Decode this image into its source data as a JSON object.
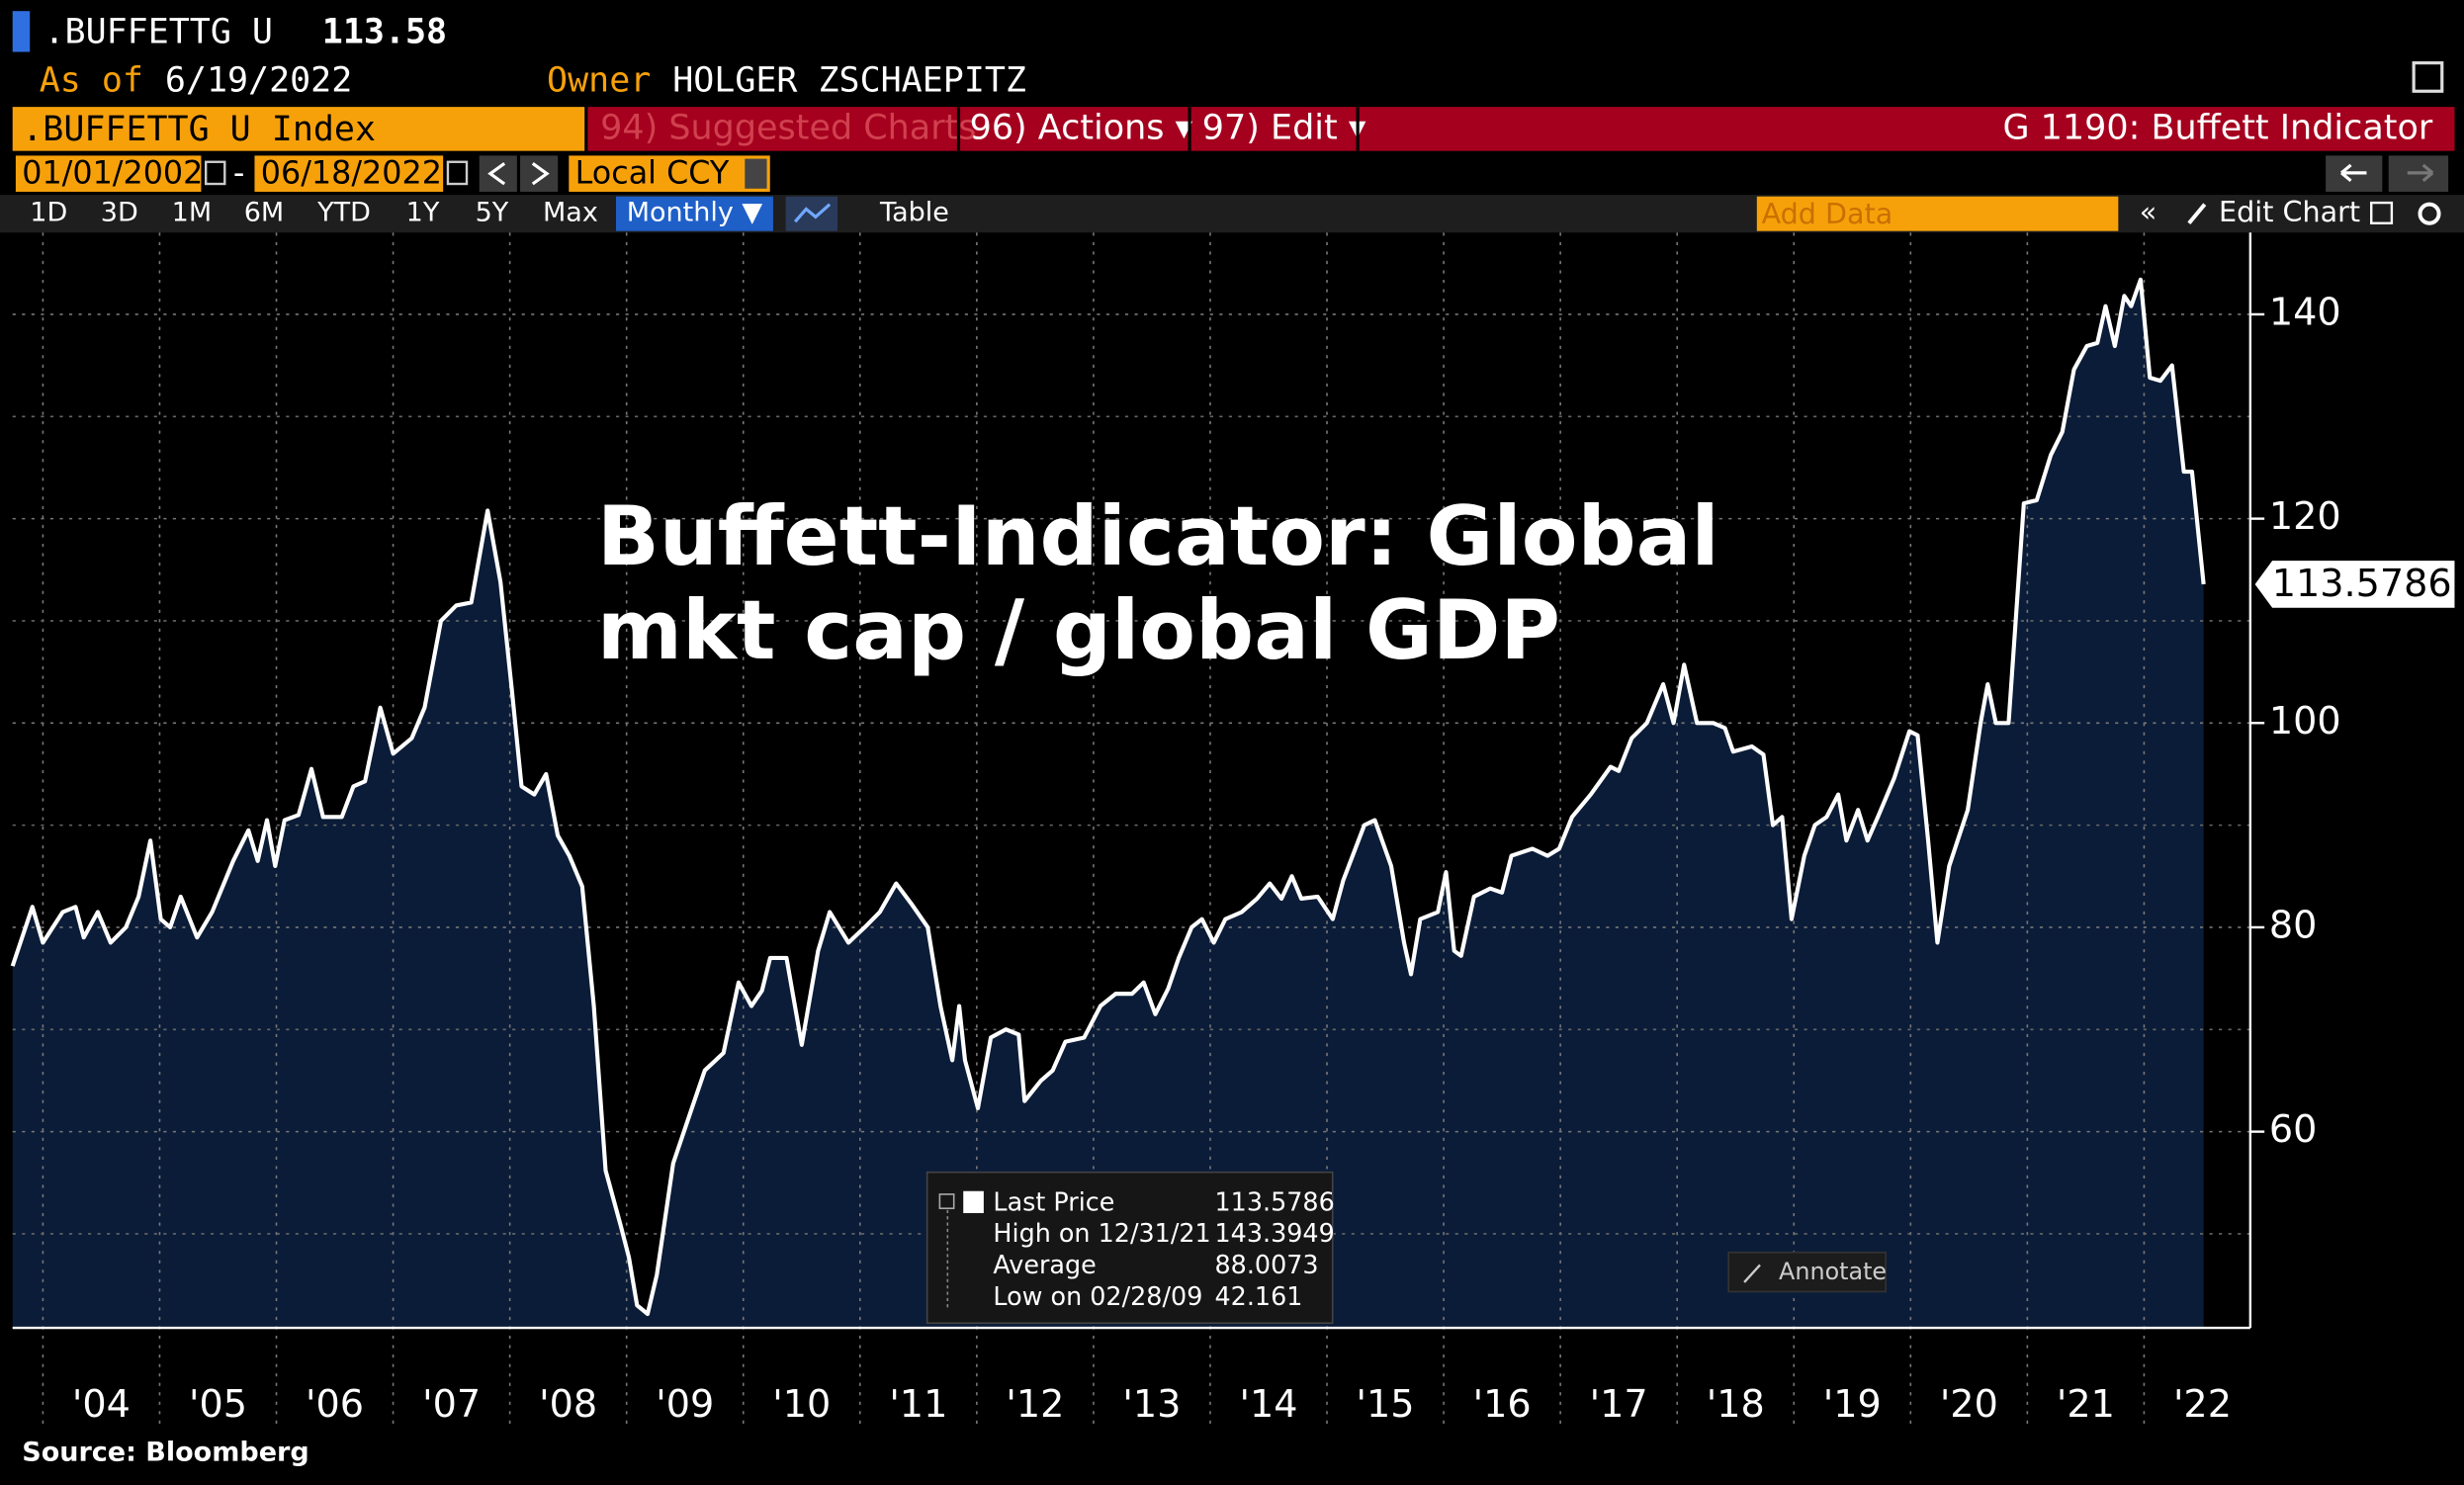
{
  "terminal": {
    "ticker": ".BUFFETTG U",
    "price": "113.58",
    "as_of_label": "As of",
    "as_of_date": "6/19/2022",
    "owner_label": "Owner",
    "owner": "HOLGER ZSCHAEPITZ",
    "security": ".BUFFETTG U Index",
    "menu": [
      "94) Suggested Charts",
      "96) Actions ▾",
      "97) Edit ▾"
    ],
    "function": "G 1190: Buffett Indicator",
    "start_date": "01/01/2002",
    "date_separator": "-",
    "end_date": "06/18/2022",
    "currency": "Local CCY",
    "buttons": [
      "1D",
      "3D",
      "1M",
      "6M",
      "YTD",
      "1Y",
      "5Y",
      "Max",
      "Monthly ▼",
      "Table"
    ],
    "add_data": "Add Data",
    "edit_chart": "Edit Chart",
    "annotate": "Annotate"
  },
  "chart_data": {
    "type": "area",
    "annotation": [
      "Buffett-Indicator: Global",
      "mkt cap / global GDP"
    ],
    "source": "Source: Bloomberg",
    "series_name": "Last Price",
    "line_color": "#ffffff",
    "fill_color": "#0b1c38",
    "xlim": [
      2003.74,
      2022.91
    ],
    "ylim": [
      40.8,
      148
    ],
    "xticks": [
      {
        "value": 2004,
        "label": "'04"
      },
      {
        "value": 2005,
        "label": "'05"
      },
      {
        "value": 2006,
        "label": "'06"
      },
      {
        "value": 2007,
        "label": "'07"
      },
      {
        "value": 2008,
        "label": "'08"
      },
      {
        "value": 2009,
        "label": "'09"
      },
      {
        "value": 2010,
        "label": "'10"
      },
      {
        "value": 2011,
        "label": "'11"
      },
      {
        "value": 2012,
        "label": "'12"
      },
      {
        "value": 2013,
        "label": "'13"
      },
      {
        "value": 2014,
        "label": "'14"
      },
      {
        "value": 2015,
        "label": "'15"
      },
      {
        "value": 2016,
        "label": "'16"
      },
      {
        "value": 2017,
        "label": "'17"
      },
      {
        "value": 2018,
        "label": "'18"
      },
      {
        "value": 2019,
        "label": "'19"
      },
      {
        "value": 2020,
        "label": "'20"
      },
      {
        "value": 2021,
        "label": "'21"
      },
      {
        "value": 2022,
        "label": "'22"
      }
    ],
    "yticks": [
      60,
      80,
      100,
      120,
      140
    ],
    "y_minor_ticks": [
      50,
      70,
      90,
      110,
      130
    ],
    "grid": true,
    "y_axis_side": "right",
    "x": [
      2003.74,
      2003.91,
      2004.0,
      2004.17,
      2004.28,
      2004.35,
      2004.47,
      2004.58,
      2004.71,
      2004.82,
      2004.92,
      2005.01,
      2005.09,
      2005.18,
      2005.32,
      2005.45,
      2005.63,
      2005.76,
      2005.84,
      2005.92,
      2005.99,
      2006.07,
      2006.19,
      2006.3,
      2006.4,
      2006.56,
      2006.66,
      2006.76,
      2006.89,
      2007.0,
      2007.16,
      2007.27,
      2007.41,
      2007.54,
      2007.67,
      2007.81,
      2007.92,
      2008.02,
      2008.1,
      2008.21,
      2008.31,
      2008.41,
      2008.51,
      2008.62,
      2008.72,
      2008.82,
      2008.95,
      2009.02,
      2009.09,
      2009.18,
      2009.26,
      2009.4,
      2009.56,
      2009.67,
      2009.83,
      2009.96,
      2010.07,
      2010.16,
      2010.23,
      2010.37,
      2010.5,
      2010.64,
      2010.74,
      2010.9,
      2011.04,
      2011.17,
      2011.31,
      2011.44,
      2011.58,
      2011.69,
      2011.79,
      2011.85,
      2011.9,
      2012.01,
      2012.12,
      2012.25,
      2012.36,
      2012.41,
      2012.55,
      2012.65,
      2012.76,
      2012.92,
      2013.06,
      2013.19,
      2013.33,
      2013.43,
      2013.53,
      2013.64,
      2013.73,
      2013.84,
      2013.93,
      2014.03,
      2014.13,
      2014.27,
      2014.4,
      2014.51,
      2014.61,
      2014.7,
      2014.78,
      2014.92,
      2015.05,
      2015.14,
      2015.32,
      2015.41,
      2015.55,
      2015.66,
      2015.72,
      2015.8,
      2015.95,
      2016.02,
      2016.09,
      2016.15,
      2016.26,
      2016.4,
      2016.5,
      2016.58,
      2016.76,
      2016.89,
      2016.99,
      2017.1,
      2017.26,
      2017.43,
      2017.5,
      2017.61,
      2017.74,
      2017.88,
      2017.97,
      2018.06,
      2018.17,
      2018.31,
      2018.41,
      2018.48,
      2018.64,
      2018.74,
      2018.82,
      2018.9,
      2018.98,
      2019.09,
      2019.18,
      2019.28,
      2019.38,
      2019.45,
      2019.55,
      2019.63,
      2019.72,
      2019.86,
      2019.99,
      2020.06,
      2020.15,
      2020.23,
      2020.33,
      2020.49,
      2020.6,
      2020.66,
      2020.73,
      2020.84,
      2020.97,
      2021.08,
      2021.2,
      2021.3,
      2021.4,
      2021.51,
      2021.6,
      2021.67,
      2021.75,
      2021.83,
      2021.89,
      2021.97,
      2022.05,
      2022.14,
      2022.24,
      2022.34,
      2022.41,
      2022.51
    ],
    "values": [
      76.2,
      82,
      78.5,
      81.5,
      82,
      79,
      81.5,
      78.5,
      80,
      83,
      88.5,
      80.8,
      80,
      83,
      79,
      81.5,
      86.5,
      89.5,
      86.5,
      90.5,
      86,
      90.5,
      91,
      95.5,
      90.8,
      90.8,
      93.8,
      94.3,
      101.5,
      97,
      98.5,
      101.5,
      110,
      111.5,
      111.8,
      120.8,
      113.8,
      103,
      93.8,
      93,
      95,
      89,
      87,
      84,
      72.3,
      56.2,
      50.8,
      47.7,
      43,
      42.161,
      46,
      56.9,
      62.3,
      66,
      67.7,
      74.6,
      72.3,
      73.8,
      77,
      77,
      68.5,
      77.7,
      81.5,
      78.5,
      80,
      81.5,
      84.3,
      82.3,
      80,
      72.3,
      67,
      72.3,
      67,
      62.3,
      69.2,
      70,
      69.5,
      63,
      65,
      66,
      68.8,
      69.2,
      72.3,
      73.5,
      73.5,
      74.6,
      71.5,
      74,
      77,
      80,
      80.8,
      78.5,
      80.8,
      81.5,
      82.8,
      84.3,
      82.8,
      85,
      82.8,
      83,
      80.8,
      84.6,
      90,
      90.5,
      86,
      78.5,
      75.4,
      80.8,
      81.5,
      85.4,
      77.7,
      77.2,
      83,
      83.8,
      83.4,
      87,
      87.7,
      87,
      87.7,
      90.8,
      93,
      95.7,
      95.3,
      98.5,
      100,
      103.8,
      100,
      105.7,
      100,
      100,
      99.5,
      97.2,
      97.7,
      96.9,
      90,
      90.8,
      80.8,
      87,
      90,
      90.8,
      93,
      88.5,
      91.5,
      88.5,
      90.8,
      94.6,
      99.2,
      98.8,
      88.5,
      78.5,
      86,
      91.5,
      100,
      103.8,
      100,
      100,
      121.5,
      121.8,
      126.2,
      128.5,
      134.6,
      136.9,
      137.2,
      140.8,
      136.9,
      141.8,
      140.8,
      143.3949,
      133.8,
      133.5,
      135,
      124.6,
      124.6,
      113.5786
    ],
    "stats": [
      {
        "label": "Last Price",
        "value": 113.5786
      },
      {
        "label": "High on 12/31/21",
        "value": 143.3949
      },
      {
        "label": "Average",
        "value": 88.0073
      },
      {
        "label": "Low on 02/28/09",
        "value": 42.161
      }
    ]
  }
}
